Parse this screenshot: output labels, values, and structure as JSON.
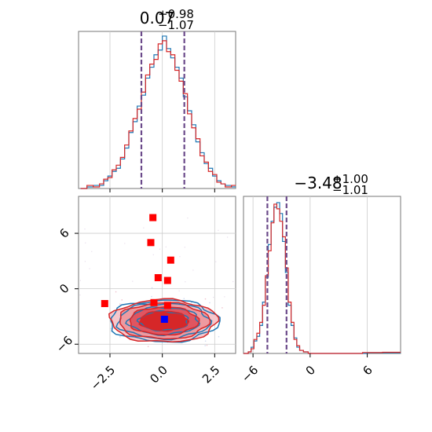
{
  "chart_data": [
    {
      "type": "histogram",
      "panel": "top-left",
      "title": {
        "base": "0.07",
        "sup": "+0.98",
        "sub": "−1.07"
      },
      "xlim": [
        -4,
        3.5
      ],
      "grid": true,
      "quantile_lines": [
        -1.0,
        1.05
      ],
      "series": [
        {
          "color": "#1f77b4",
          "bins": [
            [
              -3.9,
              0
            ],
            [
              -3.6,
              0.01
            ],
            [
              -3.3,
              0.02
            ],
            [
              -3.0,
              0.02
            ],
            [
              -2.8,
              0.05
            ],
            [
              -2.6,
              0.08
            ],
            [
              -2.4,
              0.11
            ],
            [
              -2.2,
              0.13
            ],
            [
              -2.0,
              0.19
            ],
            [
              -1.8,
              0.26
            ],
            [
              -1.6,
              0.36
            ],
            [
              -1.4,
              0.43
            ],
            [
              -1.2,
              0.53
            ],
            [
              -1.0,
              0.6
            ],
            [
              -0.8,
              0.71
            ],
            [
              -0.6,
              0.78
            ],
            [
              -0.4,
              0.86
            ],
            [
              -0.2,
              0.89
            ],
            [
              0.0,
              0.98
            ],
            [
              0.2,
              0.9
            ],
            [
              0.4,
              0.84
            ],
            [
              0.6,
              0.78
            ],
            [
              0.8,
              0.71
            ],
            [
              1.0,
              0.59
            ],
            [
              1.2,
              0.5
            ],
            [
              1.4,
              0.41
            ],
            [
              1.6,
              0.3
            ],
            [
              1.8,
              0.23
            ],
            [
              2.0,
              0.16
            ],
            [
              2.2,
              0.13
            ],
            [
              2.4,
              0.08
            ],
            [
              2.6,
              0.05
            ],
            [
              2.8,
              0.03
            ],
            [
              3.0,
              0.02
            ],
            [
              3.3,
              0.01
            ]
          ]
        },
        {
          "color": "#d62728",
          "bins": [
            [
              -3.9,
              0
            ],
            [
              -3.6,
              0.02
            ],
            [
              -3.3,
              0.01
            ],
            [
              -3.0,
              0.03
            ],
            [
              -2.8,
              0.06
            ],
            [
              -2.6,
              0.07
            ],
            [
              -2.4,
              0.12
            ],
            [
              -2.2,
              0.15
            ],
            [
              -2.0,
              0.2
            ],
            [
              -1.8,
              0.28
            ],
            [
              -1.6,
              0.37
            ],
            [
              -1.4,
              0.45
            ],
            [
              -1.2,
              0.51
            ],
            [
              -1.0,
              0.62
            ],
            [
              -0.8,
              0.73
            ],
            [
              -0.6,
              0.8
            ],
            [
              -0.4,
              0.83
            ],
            [
              -0.2,
              0.93
            ],
            [
              0.0,
              0.95
            ],
            [
              0.2,
              0.88
            ],
            [
              0.4,
              0.86
            ],
            [
              0.6,
              0.76
            ],
            [
              0.8,
              0.69
            ],
            [
              1.0,
              0.61
            ],
            [
              1.2,
              0.48
            ],
            [
              1.4,
              0.39
            ],
            [
              1.6,
              0.32
            ],
            [
              1.8,
              0.21
            ],
            [
              2.0,
              0.17
            ],
            [
              2.2,
              0.11
            ],
            [
              2.4,
              0.09
            ],
            [
              2.6,
              0.04
            ],
            [
              2.8,
              0.03
            ],
            [
              3.0,
              0.01
            ],
            [
              3.3,
              0.02
            ]
          ]
        }
      ]
    },
    {
      "type": "scatter",
      "panel": "bottom-left",
      "xlim": [
        -4,
        3.5
      ],
      "ylim": [
        -7,
        10
      ],
      "xticks": [
        "−2.5",
        "0.0",
        "2.5"
      ],
      "xtick_values": [
        -2.5,
        0.0,
        2.5
      ],
      "yticks": [
        "−6",
        "0",
        "6"
      ],
      "ytick_values": [
        -6,
        0,
        6
      ],
      "grid": true,
      "contour_center": [
        0.07,
        -3.48
      ],
      "contour_sigma": [
        1.02,
        1.0
      ],
      "highlight_points": {
        "red": [
          [
            -0.45,
            7.7
          ],
          [
            -0.55,
            5.0
          ],
          [
            0.4,
            3.1
          ],
          [
            -0.2,
            1.2
          ],
          [
            0.25,
            0.9
          ],
          [
            -2.75,
            -1.6
          ],
          [
            -0.4,
            -1.5
          ],
          [
            0.25,
            -1.8
          ]
        ],
        "blue": [
          [
            0.1,
            -3.3
          ]
        ]
      }
    },
    {
      "type": "histogram",
      "panel": "bottom-right",
      "title": {
        "base": "−3.48",
        "sup": "+1.00",
        "sub": "−1.01"
      },
      "xlim": [
        -7,
        9.5
      ],
      "xticks": [
        "−6",
        "0",
        "6"
      ],
      "xtick_values": [
        -6,
        0,
        6
      ],
      "grid": true,
      "quantile_lines": [
        -4.49,
        -2.48
      ],
      "series": [
        {
          "color": "#1f77b4",
          "bins": [
            [
              -7.0,
              0
            ],
            [
              -6.5,
              0.01
            ],
            [
              -6.2,
              0.04
            ],
            [
              -5.9,
              0.08
            ],
            [
              -5.6,
              0.11
            ],
            [
              -5.3,
              0.18
            ],
            [
              -5.0,
              0.33
            ],
            [
              -4.7,
              0.49
            ],
            [
              -4.4,
              0.7
            ],
            [
              -4.1,
              0.85
            ],
            [
              -3.8,
              0.94
            ],
            [
              -3.5,
              0.97
            ],
            [
              -3.2,
              0.9
            ],
            [
              -2.9,
              0.72
            ],
            [
              -2.6,
              0.52
            ],
            [
              -2.3,
              0.31
            ],
            [
              -2.0,
              0.18
            ],
            [
              -1.7,
              0.1
            ],
            [
              -1.4,
              0.04
            ],
            [
              -1.1,
              0.02
            ],
            [
              -0.7,
              0.01
            ],
            [
              -0.2,
              0
            ],
            [
              6.0,
              0.005
            ],
            [
              7.5,
              0.005
            ]
          ]
        },
        {
          "color": "#d62728",
          "bins": [
            [
              -7.0,
              0
            ],
            [
              -6.5,
              0.01
            ],
            [
              -6.2,
              0.03
            ],
            [
              -5.9,
              0.09
            ],
            [
              -5.6,
              0.13
            ],
            [
              -5.3,
              0.2
            ],
            [
              -5.0,
              0.31
            ],
            [
              -4.7,
              0.5
            ],
            [
              -4.4,
              0.66
            ],
            [
              -4.1,
              0.84
            ],
            [
              -3.8,
              0.96
            ],
            [
              -3.5,
              0.93
            ],
            [
              -3.2,
              0.85
            ],
            [
              -2.9,
              0.75
            ],
            [
              -2.6,
              0.55
            ],
            [
              -2.3,
              0.33
            ],
            [
              -2.0,
              0.2
            ],
            [
              -1.7,
              0.09
            ],
            [
              -1.4,
              0.05
            ],
            [
              -1.1,
              0.02
            ],
            [
              -0.7,
              0.01
            ],
            [
              -0.2,
              0
            ],
            [
              5.5,
              0.006
            ],
            [
              7.6,
              0.008
            ]
          ]
        }
      ]
    }
  ],
  "colors": {
    "blue": "#1f77b4",
    "red": "#d62728",
    "quantile": "#6b4a8a",
    "marker_red": "#ff0000",
    "marker_blue": "#0000ff",
    "axis": "#777777",
    "grid": "#cccccc"
  }
}
